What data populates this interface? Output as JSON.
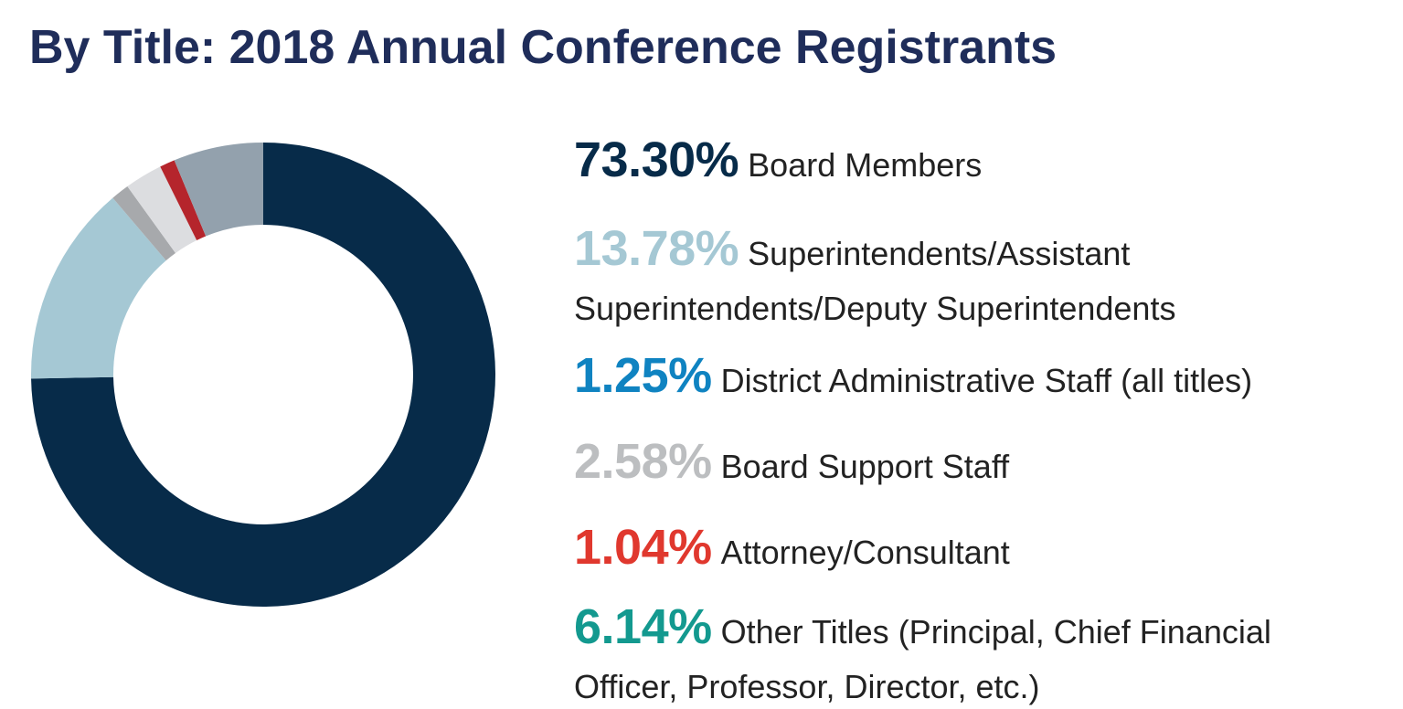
{
  "title": "By Title: 2018 Annual Conference Registrants",
  "chart_data": {
    "type": "pie",
    "subtype": "donut",
    "title": "By Title: 2018 Annual Conference Registrants",
    "categories": [
      "Board Members",
      "Superintendents/Assistant Superintendents/Deputy Superintendents",
      "District Administrative Staff (all titles)",
      "Board Support Staff",
      "Attorney/Consultant",
      "Other Titles (Principal, Chief Financial Officer, Professor, Director, etc.)"
    ],
    "values": [
      73.3,
      13.78,
      1.25,
      2.58,
      1.04,
      6.14
    ],
    "slice_order_clockwise_from_top": [
      "Board Members",
      "Superintendents/Assistant Superintendents/Deputy Superintendents",
      "District Administrative Staff (all titles)",
      "Board Support Staff",
      "Attorney/Consultant",
      "Other Titles (Principal, Chief Financial Officer, Professor, Director, etc.)"
    ],
    "slice_colors": [
      "#072b49",
      "#a5c8d4",
      "#a7a9ac",
      "#dcdde0",
      "#b5252c",
      "#93a1ad"
    ],
    "legend_placement": "right"
  },
  "legend": [
    {
      "percent": "73.30%",
      "label": "Board Members",
      "percent_color": "#072b49"
    },
    {
      "percent": "13.78%",
      "label": "Superintendents/Assistant Superintendents/Deputy Superintendents",
      "percent_color": "#a5c8d4"
    },
    {
      "percent": "1.25%",
      "label": "District Administrative Staff (all titles)",
      "percent_color": "#0f83c1"
    },
    {
      "percent": "2.58%",
      "label": "Board Support Staff",
      "percent_color": "#bcbec0"
    },
    {
      "percent": "1.04%",
      "label": "Attorney/Consultant",
      "percent_color": "#e0382e"
    },
    {
      "percent": "6.14%",
      "label": "Other Titles (Principal, Chief Financial Officer, Professor, Director, etc.)",
      "percent_color": "#13998f"
    }
  ]
}
